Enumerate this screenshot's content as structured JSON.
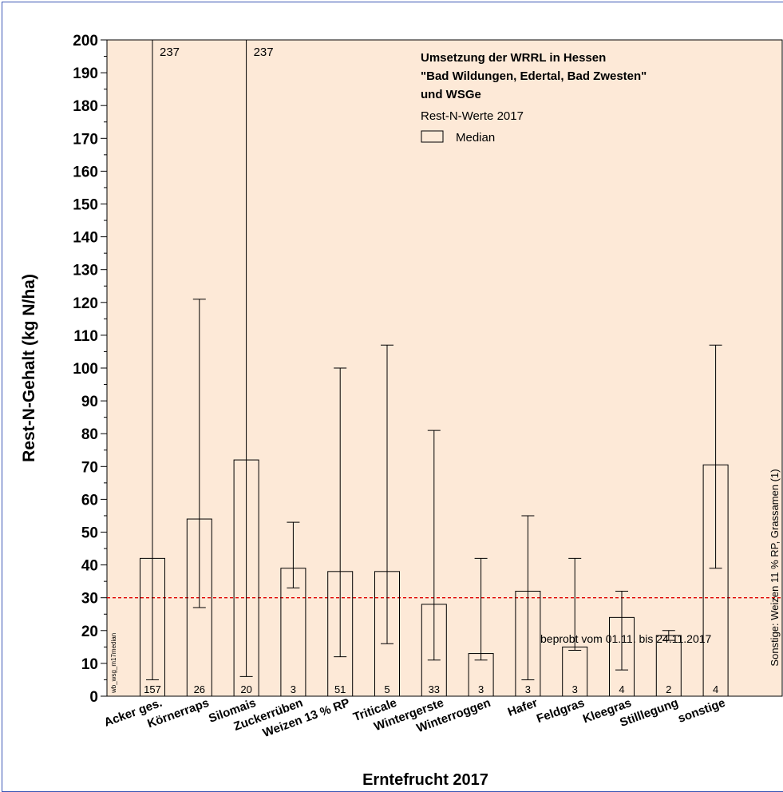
{
  "chart_data": {
    "type": "bar",
    "title_lines": [
      "Umsetzung der WRRL in Hessen",
      "\"Bad Wildungen, Edertal, Bad Zwesten\"",
      "und WSGe"
    ],
    "subtitle": "Rest-N-Werte 2017",
    "legend_label": "Median",
    "legend_position": "top-right",
    "xlabel": "Erntefrucht 2017",
    "ylabel": "Rest-N-Gehalt (kg N/ha)",
    "ylim": [
      0,
      200
    ],
    "ytick_step": 10,
    "threshold": 30,
    "threshold_color": "#e00000",
    "plot_background": "#fde9d7",
    "categories": [
      "Acker ges.",
      "Körnerraps",
      "Silomais",
      "Zuckerrüben",
      "Weizen 13 % RP",
      "Triticale",
      "Wintergerste",
      "Winterroggen",
      "Hafer",
      "Feldgras",
      "Kleegras",
      "Stilllegung",
      "sonstige"
    ],
    "median": [
      42,
      54,
      72,
      39,
      38,
      38,
      28,
      13,
      32,
      15,
      24,
      18.5,
      70.5
    ],
    "min": [
      5,
      27,
      6,
      33,
      12,
      16,
      11,
      11,
      5,
      14,
      8,
      17,
      39
    ],
    "max": [
      237,
      121,
      237,
      53,
      100,
      107,
      81,
      42,
      55,
      42,
      32,
      20,
      107
    ],
    "n": [
      157,
      26,
      20,
      3,
      51,
      5,
      33,
      3,
      3,
      3,
      4,
      2,
      4
    ],
    "clipped_labels": [
      "237",
      "237"
    ],
    "side_note": "Sonstige: Weizen 11 % RP, Grassamen (1)",
    "corner_note": "wb_wsg_m17median",
    "footnote": "beprobt vom 01.11. bis 24.11.2017"
  }
}
